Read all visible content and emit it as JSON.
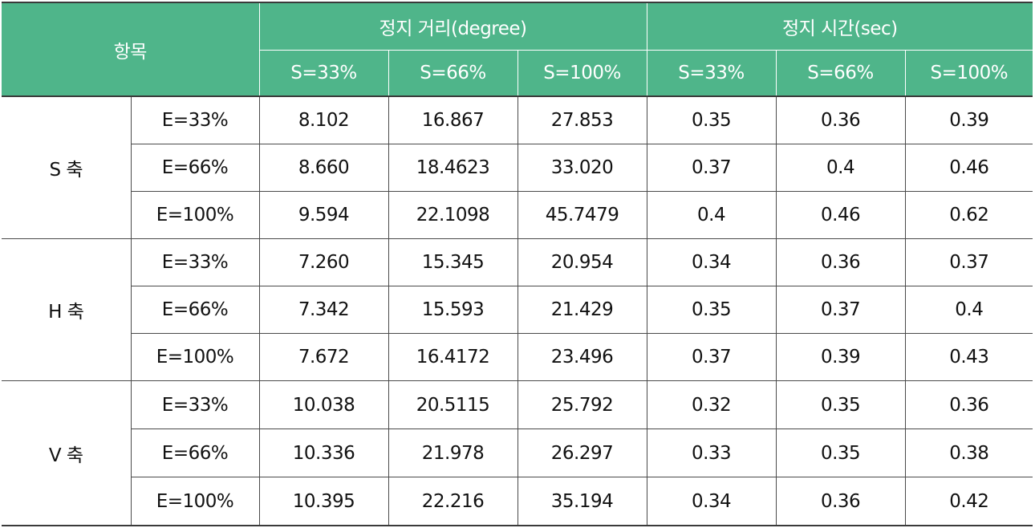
{
  "header": {
    "item_label": "항목",
    "group_distance": "정지 거리(degree)",
    "group_time": "정지 시간(sec)",
    "sub_labels": [
      "S=33%",
      "S=66%",
      "S=100%",
      "S=33%",
      "S=66%",
      "S=100%"
    ]
  },
  "axes": [
    {
      "axis": "S 축",
      "rows": [
        {
          "e": "E=33%",
          "dist": [
            "8.102",
            "16.867",
            "27.853"
          ],
          "time": [
            "0.35",
            "0.36",
            "0.39"
          ]
        },
        {
          "e": "E=66%",
          "dist": [
            "8.660",
            "18.4623",
            "33.020"
          ],
          "time": [
            "0.37",
            "0.4",
            "0.46"
          ]
        },
        {
          "e": "E=100%",
          "dist": [
            "9.594",
            "22.1098",
            "45.7479"
          ],
          "time": [
            "0.4",
            "0.46",
            "0.62"
          ]
        }
      ]
    },
    {
      "axis": "H 축",
      "rows": [
        {
          "e": "E=33%",
          "dist": [
            "7.260",
            "15.345",
            "20.954"
          ],
          "time": [
            "0.34",
            "0.36",
            "0.37"
          ]
        },
        {
          "e": "E=66%",
          "dist": [
            "7.342",
            "15.593",
            "21.429"
          ],
          "time": [
            "0.35",
            "0.37",
            "0.4"
          ]
        },
        {
          "e": "E=100%",
          "dist": [
            "7.672",
            "16.4172",
            "23.496"
          ],
          "time": [
            "0.37",
            "0.39",
            "0.43"
          ]
        }
      ]
    },
    {
      "axis": "V 축",
      "rows": [
        {
          "e": "E=33%",
          "dist": [
            "10.038",
            "20.5115",
            "25.792"
          ],
          "time": [
            "0.32",
            "0.35",
            "0.36"
          ]
        },
        {
          "e": "E=66%",
          "dist": [
            "10.336",
            "21.978",
            "26.297"
          ],
          "time": [
            "0.33",
            "0.35",
            "0.38"
          ]
        },
        {
          "e": "E=100%",
          "dist": [
            "10.395",
            "22.216",
            "35.194"
          ],
          "time": [
            "0.34",
            "0.36",
            "0.42"
          ]
        }
      ]
    }
  ]
}
